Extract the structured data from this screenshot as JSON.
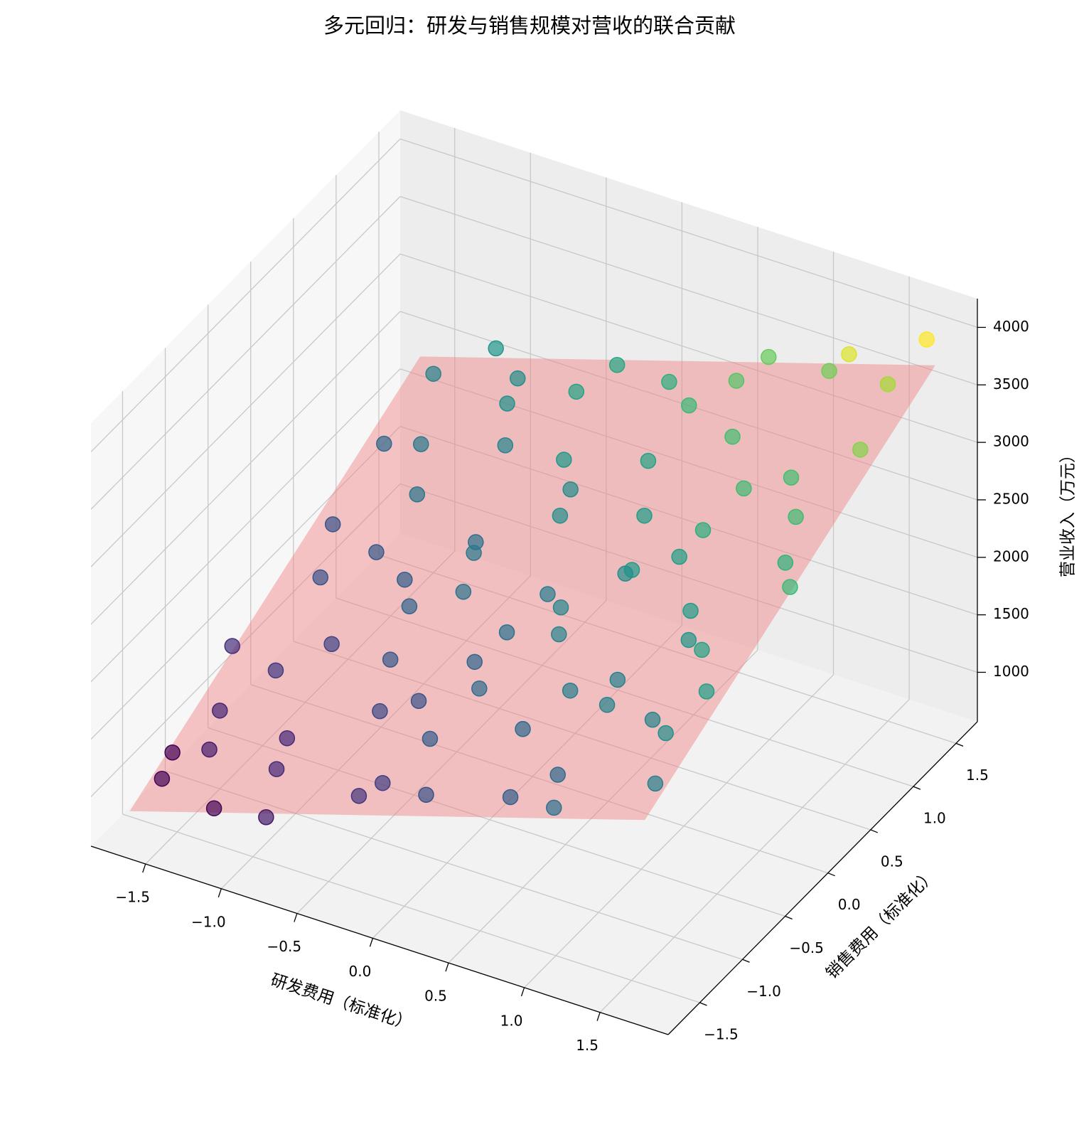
{
  "chart_data": {
    "type": "scatter3d",
    "title": "多元回归：研发与销售规模对营收的联合贡献",
    "xlabel": "研发费用（标准化）",
    "ylabel": "销售费用（标准化）",
    "zlabel": "营业收入（万元）",
    "colormap": "viridis",
    "grid": true,
    "xlim": [
      -1.86,
      1.95
    ],
    "ylim": [
      -1.87,
      1.75
    ],
    "zlim": [
      570,
      4250
    ],
    "xticks": [
      {
        "value": -1.5,
        "label": "−1.5"
      },
      {
        "value": -1,
        "label": "−1.0"
      },
      {
        "value": -0.5,
        "label": "−0.5"
      },
      {
        "value": 0,
        "label": "0.0"
      },
      {
        "value": 0.5,
        "label": "0.5"
      },
      {
        "value": 1,
        "label": "1.0"
      },
      {
        "value": 1.5,
        "label": "1.5"
      }
    ],
    "yticks": [
      {
        "value": -1.5,
        "label": "−1.5"
      },
      {
        "value": -1,
        "label": "−1.0"
      },
      {
        "value": -0.5,
        "label": "−0.5"
      },
      {
        "value": 0,
        "label": "0.0"
      },
      {
        "value": 0.5,
        "label": "0.5"
      },
      {
        "value": 1,
        "label": "1.0"
      },
      {
        "value": 1.5,
        "label": "1.5"
      }
    ],
    "zticks": [
      1000,
      1500,
      2000,
      2500,
      3000,
      3500,
      4000
    ],
    "plane": {
      "x": [
        -1.7,
        1.7
      ],
      "y": [
        -1.7,
        1.7
      ],
      "z": [
        [
          816,
          2214
        ],
        [
          2201,
          3600
        ]
      ],
      "color": "#f08080"
    },
    "x": [
      -1.6,
      -1.2,
      -0.8,
      -0.3,
      0.2,
      0.7,
      1.1,
      1.6,
      -1.5,
      -1.0,
      -0.5,
      0.0,
      0.5,
      1.0,
      1.5,
      -1.7,
      -1.1,
      -0.6,
      -0.1,
      0.4,
      0.9,
      1.4,
      -1.4,
      -0.9,
      -0.4,
      0.1,
      0.6,
      1.1,
      1.7,
      -1.6,
      -1.1,
      -0.6,
      -0.1,
      0.4,
      0.9,
      1.4,
      -1.3,
      -0.8,
      -0.3,
      0.2,
      0.7,
      1.2,
      1.6,
      -1.5,
      -1.0,
      -0.5,
      0.0,
      0.5,
      1.0,
      1.5,
      1.7,
      1.3,
      -1.7,
      -0.2,
      0.9,
      -1.3,
      -0.3,
      0.7,
      1.2,
      -0.7,
      0.3,
      -1.2,
      0.8,
      -0.2,
      1.0,
      -0.9,
      0.3,
      -1.6,
      1.5,
      0.0,
      -1.4,
      1.3,
      0.6,
      -0.4,
      -1.2,
      0.5,
      -0.5,
      1.6,
      0.1,
      -0.9
    ],
    "y": [
      -1.5,
      -1.6,
      -1.7,
      -1.5,
      -1.6,
      -1.5,
      -1.7,
      -1.4,
      -1.0,
      -1.1,
      -0.9,
      -1.2,
      -1.0,
      -0.9,
      -1.1,
      -0.5,
      -0.4,
      -0.6,
      -0.5,
      -0.4,
      -0.6,
      -0.5,
      0.0,
      0.1,
      -0.1,
      0.0,
      0.1,
      -0.1,
      0.0,
      0.5,
      0.6,
      0.4,
      0.5,
      0.6,
      0.4,
      0.6,
      1.0,
      1.1,
      0.9,
      1.0,
      1.1,
      0.9,
      1.0,
      1.5,
      1.6,
      1.4,
      1.6,
      1.5,
      1.7,
      1.5,
      1.6,
      1.4,
      -1.2,
      -1.4,
      -1.3,
      -0.7,
      -0.8,
      -0.8,
      -0.3,
      -0.2,
      -0.2,
      0.3,
      0.3,
      0.8,
      0.7,
      1.3,
      1.3,
      1.1,
      0.3,
      -0.3,
      -1.3,
      -0.9,
      1.7,
      1.7,
      1.7,
      0.2,
      0.2,
      -0.8,
      -0.8,
      -1.4
    ],
    "z": [
      990,
      980,
      1150,
      1400,
      1700,
      1820,
      2050,
      2250,
      1250,
      1300,
      1600,
      1800,
      1950,
      2300,
      2420,
      1350,
      1550,
      1780,
      1900,
      2280,
      2250,
      2650,
      1700,
      1820,
      2080,
      2200,
      2550,
      2560,
      2950,
      1700,
      2100,
      2050,
      2420,
      2560,
      2800,
      2980,
      2150,
      2280,
      2520,
      2650,
      3000,
      3010,
      3350,
      2300,
      2400,
      2650,
      2800,
      3100,
      3250,
      3500,
      3900,
      3750,
      950,
      1480,
      1950,
      1460,
      1700,
      2220,
      2500,
      1900,
      2320,
      1780,
      2600,
      2380,
      2980,
      2450,
      2950,
      1950,
      2850,
      2050,
      1180,
      2300,
      3200,
      2700,
      2500,
      2400,
      2150,
      2600,
      1980,
      1300
    ]
  }
}
